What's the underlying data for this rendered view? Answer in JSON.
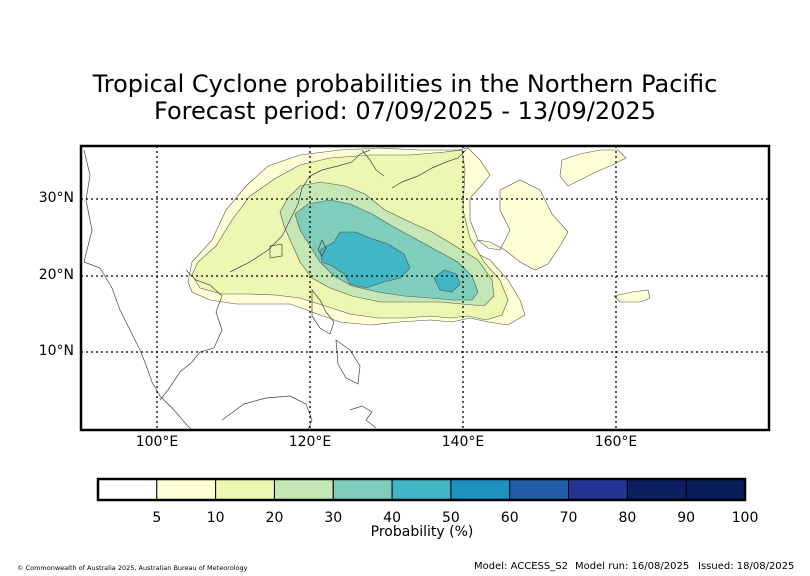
{
  "title": {
    "line1": "Tropical Cyclone probabilities in the Northern Pacific",
    "line2": "Forecast period: 07/09/2025 - 13/09/2025"
  },
  "map": {
    "lon_labels": [
      "100°E",
      "120°E",
      "140°E",
      "160°E"
    ],
    "lat_labels": [
      "30°N",
      "20°N",
      "10°N"
    ],
    "extent": {
      "lon_min": 90,
      "lon_max": 180,
      "lat_min": 0,
      "lat_max": 37
    }
  },
  "colorbar": {
    "title": "Probability (%)",
    "ticks": [
      "5",
      "10",
      "20",
      "30",
      "40",
      "50",
      "60",
      "70",
      "80",
      "90",
      "100"
    ],
    "colors": [
      "#ffffff",
      "#feffd4",
      "#ecf7b2",
      "#c5e6b5",
      "#7fcdbb",
      "#41b6c4",
      "#1d91c0",
      "#225ea8",
      "#253494",
      "#0c1f5e",
      "#081d58"
    ]
  },
  "footer": {
    "copyright": "© Commonwealth of Australia 2025, Australian Bureau of Meteorology",
    "model": "Model: ACCESS_S2",
    "model_run": "Model run: 16/08/2025",
    "issued": "Issued: 18/08/2025"
  }
}
